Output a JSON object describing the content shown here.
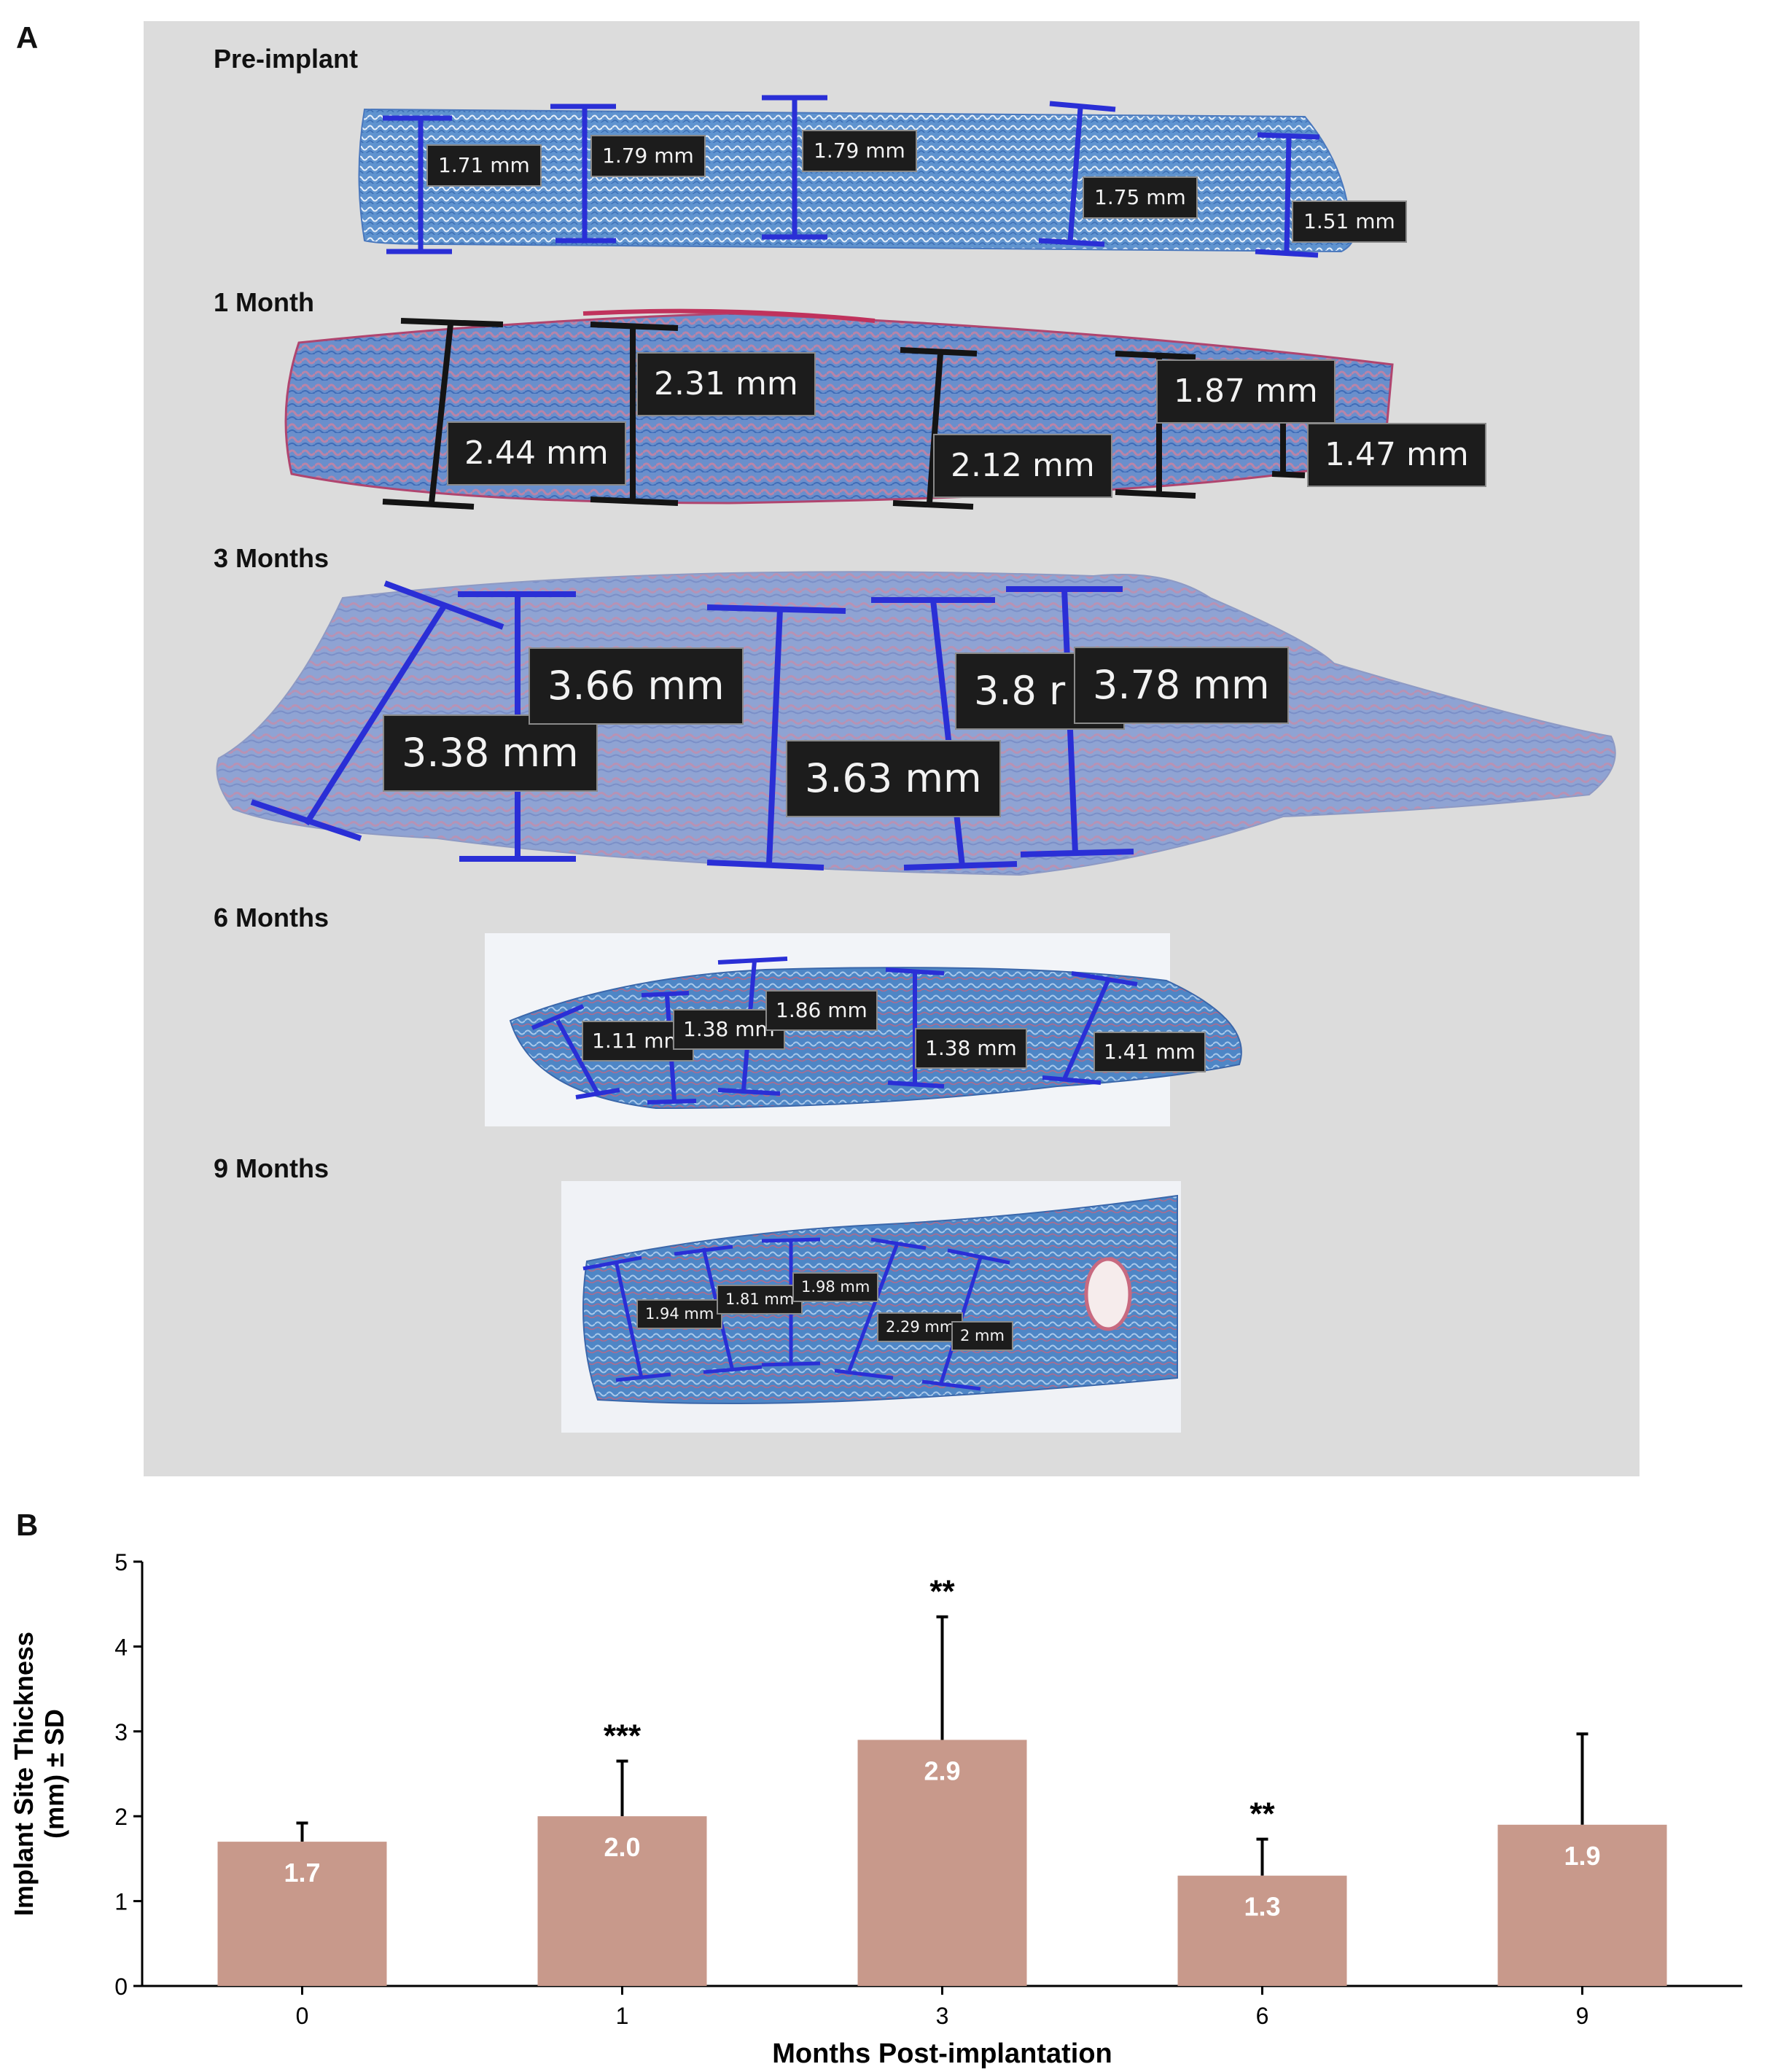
{
  "panel_a": {
    "letter": "A",
    "sections": [
      {
        "label": "Pre-implant",
        "measurements": [
          "1.71 mm",
          "1.79 mm",
          "1.79 mm",
          "1.75 mm",
          "1.51 mm"
        ]
      },
      {
        "label": "1 Month",
        "measurements": [
          "2.44 mm",
          "2.31 mm",
          "2.12 mm",
          "1.87 mm",
          "1.47 mm"
        ]
      },
      {
        "label": "3 Months",
        "measurements": [
          "3.38 mm",
          "3.66 mm",
          "3.63 mm",
          "3.8 r",
          "3.78 mm"
        ]
      },
      {
        "label": "6 Months",
        "measurements": [
          "1.11 mm",
          "1.38 mm",
          "1.86 mm",
          "1.38 mm",
          "1.41 mm"
        ]
      },
      {
        "label": "9 Months",
        "measurements": [
          "1.94 mm",
          "1.81 mm",
          "1.98 mm",
          "2.29 mm",
          "2 mm"
        ]
      }
    ],
    "colors": {
      "measure_blue": "#2a2fd6",
      "measure_black": "#141414",
      "tissue_blue": "#5b8fcc",
      "tissue_pink": "#c07a9e",
      "background": "#dcdcdc"
    }
  },
  "panel_b": {
    "letter": "B"
  },
  "chart_data": {
    "type": "bar",
    "categories": [
      "0",
      "1",
      "3",
      "6",
      "9"
    ],
    "values": [
      1.7,
      2.0,
      2.9,
      1.3,
      1.9
    ],
    "value_labels": [
      "1.7",
      "2.0",
      "2.9",
      "1.3",
      "1.9"
    ],
    "error_sd": [
      0.22,
      0.65,
      1.45,
      0.43,
      1.07
    ],
    "significance": [
      "",
      "***",
      "**",
      "**",
      ""
    ],
    "xlabel": "Months Post-implantation",
    "ylabel_lines": [
      "Implant Site Thickness",
      "(mm) ± SD"
    ],
    "ylim": [
      0,
      5
    ],
    "yticks": [
      "0",
      "1",
      "2",
      "3",
      "4",
      "5"
    ],
    "grid": false,
    "bar_color": "#c8998b"
  }
}
